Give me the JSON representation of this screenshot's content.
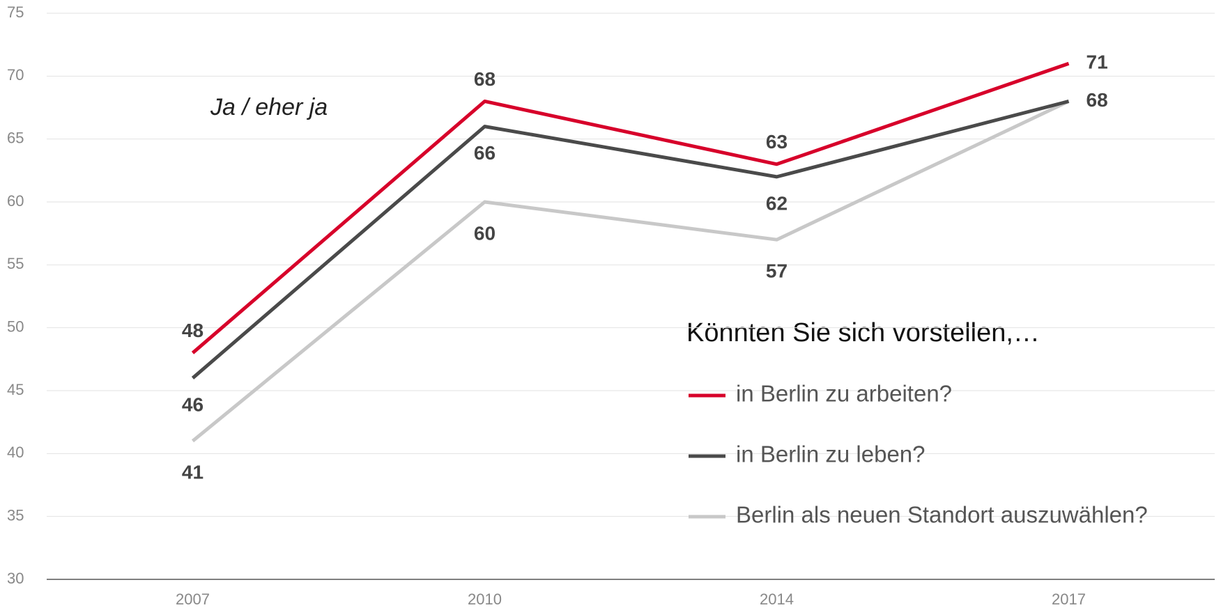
{
  "chart_data": {
    "type": "line",
    "annotation": "Ja / eher ja",
    "legend_title": "Könnten Sie sich vorstellen,…",
    "categories": [
      "2007",
      "2010",
      "2014",
      "2017"
    ],
    "series": [
      {
        "name": "in Berlin zu arbeiten?",
        "color": "#d7002a",
        "values": [
          48,
          68,
          63,
          71
        ]
      },
      {
        "name": "in Berlin zu leben?",
        "color": "#4a4a4a",
        "values": [
          46,
          66,
          62,
          68
        ]
      },
      {
        "name": "Berlin als neuen Standort auszuwählen?",
        "color": "#c8c8c8",
        "values": [
          41,
          60,
          57,
          68
        ]
      }
    ],
    "ylim": [
      30,
      75
    ],
    "yticks": [
      30,
      35,
      40,
      45,
      50,
      55,
      60,
      65,
      70,
      75
    ],
    "grid": true
  }
}
